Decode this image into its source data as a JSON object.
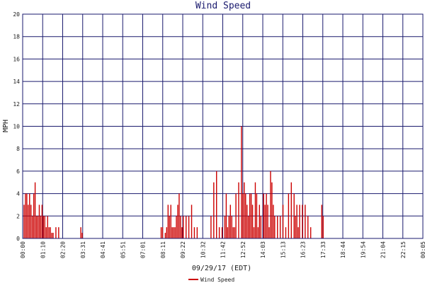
{
  "chart_data": {
    "type": "bar",
    "title": "Wind Speed",
    "xlabel": "09/29/17 (EDT)",
    "ylabel": "MPH",
    "ylim": [
      0,
      20
    ],
    "yticks": [
      0,
      2,
      4,
      6,
      8,
      10,
      12,
      14,
      16,
      18,
      20
    ],
    "xticks": [
      "00:00",
      "01:10",
      "02:20",
      "03:31",
      "04:41",
      "05:51",
      "07:01",
      "08:11",
      "09:22",
      "10:32",
      "11:42",
      "12:52",
      "14:03",
      "15:13",
      "16:23",
      "17:33",
      "18:44",
      "19:54",
      "21:04",
      "22:15",
      "00:05"
    ],
    "grid": true,
    "legend_position": "bottom",
    "colors": {
      "series": "#cc0000",
      "grid": "#1a1a6e",
      "frame": "#1a1a6e",
      "title": "#1a1a6e"
    },
    "series": [
      {
        "name": "Wind Speed",
        "x_minutes": [
          5,
          10,
          15,
          20,
          25,
          30,
          35,
          40,
          45,
          50,
          55,
          60,
          65,
          70,
          75,
          80,
          85,
          90,
          95,
          100,
          105,
          110,
          120,
          130,
          210,
          215,
          500,
          505,
          515,
          520,
          525,
          530,
          535,
          540,
          545,
          550,
          555,
          560,
          565,
          570,
          575,
          580,
          590,
          600,
          610,
          620,
          630,
          680,
          690,
          700,
          710,
          720,
          730,
          735,
          740,
          745,
          750,
          755,
          760,
          765,
          770,
          780,
          790,
          795,
          800,
          805,
          810,
          815,
          820,
          825,
          830,
          835,
          840,
          845,
          850,
          855,
          860,
          870,
          875,
          880,
          885,
          890,
          895,
          900,
          905,
          910,
          920,
          930,
          940,
          950,
          960,
          970,
          980,
          985,
          990,
          995,
          1000,
          1010,
          1020,
          1030,
          1040,
          1080,
          1085
        ],
        "values": [
          3,
          4,
          4,
          3,
          4,
          3,
          2,
          4,
          5,
          2,
          2,
          3,
          2,
          3,
          2,
          2,
          1,
          2,
          1,
          1,
          0.5,
          0.5,
          1,
          1,
          1,
          0.5,
          1,
          1,
          0.5,
          1,
          3,
          2,
          3,
          1,
          1,
          1,
          2,
          3,
          4,
          2,
          1,
          2,
          2,
          2,
          3,
          1,
          1,
          2,
          5,
          6,
          1,
          1,
          2,
          4,
          1,
          2,
          3,
          2,
          1,
          1,
          4,
          5,
          10,
          4,
          5,
          4,
          3,
          2,
          4,
          4,
          3,
          1,
          5,
          4,
          1,
          3,
          2,
          4,
          3,
          4,
          3,
          1,
          6,
          5,
          3,
          2,
          2,
          2,
          3,
          1,
          4,
          5,
          4,
          2,
          3,
          1,
          3,
          3,
          3,
          2,
          1,
          3,
          2
        ]
      }
    ]
  }
}
